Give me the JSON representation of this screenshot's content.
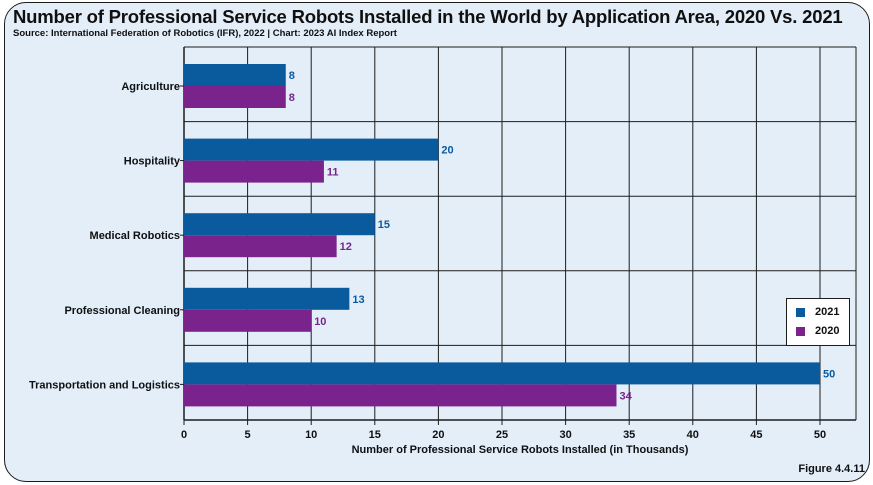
{
  "header": {
    "title": "Number of Professional Service Robots Installed in the World by Application Area, 2020 Vs. 2021",
    "source": "Source: International Federation of Robotics (IFR), 2022 | Chart: 2023 AI Index Report"
  },
  "footer": {
    "figure_label": "Figure 4.4.11"
  },
  "colors": {
    "background": "#e3eef9",
    "series_2021": "#0a5a9e",
    "series_2020": "#7a238c",
    "grid": "#1c1c1c"
  },
  "chart_data": {
    "type": "bar",
    "orientation": "horizontal",
    "title": "Number of Professional Service Robots Installed in the World by Application Area, 2020 Vs. 2021",
    "xlabel": "Number of Professional Service Robots Installed (in Thousands)",
    "ylabel": "",
    "categories": [
      "Agriculture",
      "Hospitality",
      "Medical Robotics",
      "Professional Cleaning",
      "Transportation and Logistics"
    ],
    "series": [
      {
        "name": "2021",
        "values": [
          8,
          20,
          15,
          13,
          50
        ],
        "color": "#0a5a9e"
      },
      {
        "name": "2020",
        "values": [
          8,
          11,
          12,
          10,
          34
        ],
        "color": "#7a238c"
      }
    ],
    "xlim": [
      0,
      52.5
    ],
    "xticks": [
      0,
      5,
      10,
      15,
      20,
      25,
      30,
      35,
      40,
      45,
      50
    ],
    "grid": true,
    "data_labels": true,
    "legend": {
      "position": "right",
      "entries": [
        "2021",
        "2020"
      ]
    }
  }
}
